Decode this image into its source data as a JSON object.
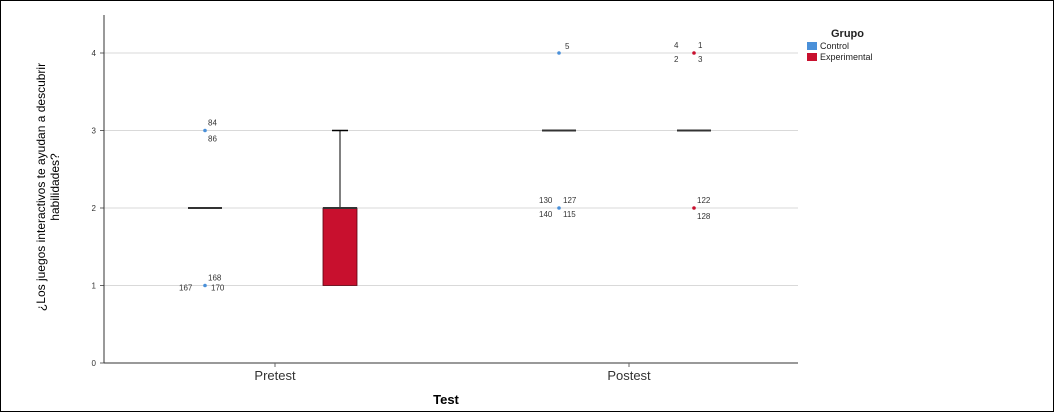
{
  "chart_data": {
    "type": "boxplot",
    "xlabel": "Test",
    "ylabel": "¿Los juegos interactivos te ayudan a descubrir habilidades?",
    "ylabel_lines": [
      "¿Los juegos interactivos te ayudan a descubrir",
      "habilidades?"
    ],
    "ylim": [
      0,
      4.5
    ],
    "yticks": [
      "0",
      "1",
      "2",
      "3",
      "4"
    ],
    "grid": true,
    "categories": [
      "Pretest",
      "Postest"
    ],
    "legend": {
      "title": "Grupo",
      "placement": "top-right",
      "entries": [
        {
          "name": "Control",
          "color": "#4a90d9"
        },
        {
          "name": "Experimental",
          "color": "#c8102e"
        }
      ]
    },
    "series": [
      {
        "name": "Control",
        "color": "#4a90d9",
        "boxes": [
          {
            "category": "Pretest",
            "min": 2,
            "q1": 2,
            "median": 2,
            "q3": 2,
            "max": 2,
            "outliers": [
              {
                "y": 3,
                "labels": [
                  "84",
                  "86"
                ]
              },
              {
                "y": 1,
                "labels": [
                  "168",
                  "167",
                  "170"
                ]
              }
            ]
          },
          {
            "category": "Postest",
            "min": 3,
            "q1": 3,
            "median": 3,
            "q3": 3,
            "max": 3,
            "outliers": [
              {
                "y": 4,
                "labels": [
                  "5"
                ]
              },
              {
                "y": 2,
                "labels": [
                  "130",
                  "127",
                  "140",
                  "115"
                ]
              }
            ]
          }
        ]
      },
      {
        "name": "Experimental",
        "color": "#c8102e",
        "boxes": [
          {
            "category": "Pretest",
            "min": 1,
            "q1": 1,
            "median": 2,
            "q3": 2,
            "max": 3,
            "outliers": []
          },
          {
            "category": "Postest",
            "min": 3,
            "q1": 3,
            "median": 3,
            "q3": 3,
            "max": 3,
            "outliers": [
              {
                "y": 4,
                "labels": [
                  "4",
                  "1",
                  "2",
                  "3"
                ]
              },
              {
                "y": 2,
                "labels": [
                  "122",
                  "128"
                ]
              }
            ]
          }
        ]
      }
    ]
  }
}
